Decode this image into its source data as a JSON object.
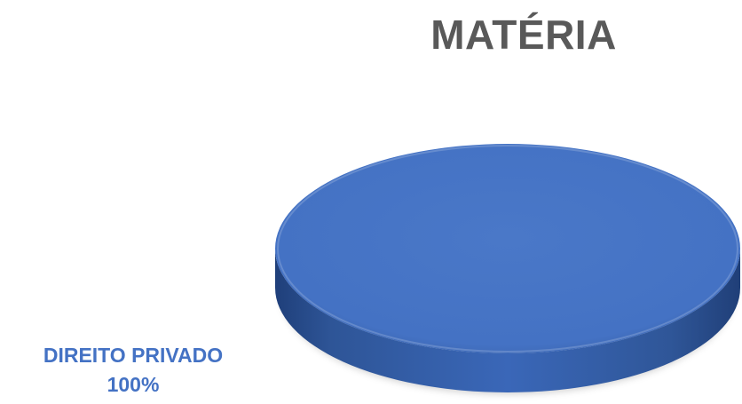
{
  "chart_data": {
    "type": "pie",
    "title": "MATÉRIA",
    "categories": [
      "DIREITO PRIVADO"
    ],
    "values": [
      100
    ],
    "data_labels": [
      {
        "category": "DIREITO PRIVADO",
        "value_text": "100%"
      }
    ],
    "style": "3d",
    "colors": [
      "#4472c4"
    ]
  }
}
